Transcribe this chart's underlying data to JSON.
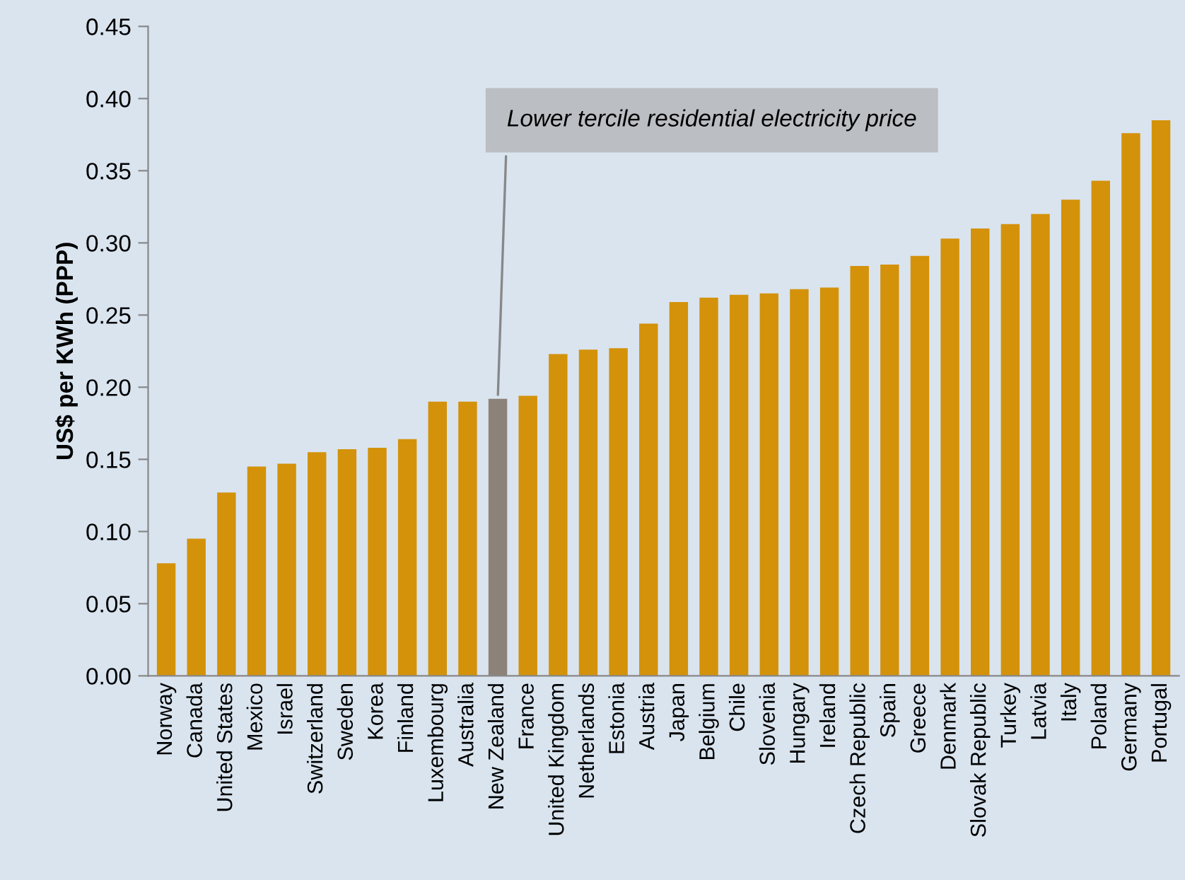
{
  "chart_data": {
    "type": "bar",
    "ylabel": "US$ per KWh (PPP)",
    "categories": [
      "Norway",
      "Canada",
      "United States",
      "Mexico",
      "Israel",
      "Switzerland",
      "Sweden",
      "Korea",
      "Finland",
      "Luxembourg",
      "Australia",
      "New Zealand",
      "France",
      "United Kingdom",
      "Netherlands",
      "Estonia",
      "Austria",
      "Japan",
      "Belgium",
      "Chile",
      "Slovenia",
      "Hungary",
      "Ireland",
      "Czech Republic",
      "Spain",
      "Greece",
      "Denmark",
      "Slovak Republic",
      "Turkey",
      "Latvia",
      "Italy",
      "Poland",
      "Germany",
      "Portugal"
    ],
    "values": [
      0.078,
      0.095,
      0.127,
      0.145,
      0.147,
      0.155,
      0.157,
      0.158,
      0.164,
      0.19,
      0.19,
      0.192,
      0.194,
      0.223,
      0.226,
      0.227,
      0.244,
      0.259,
      0.262,
      0.264,
      0.265,
      0.268,
      0.269,
      0.284,
      0.285,
      0.291,
      0.303,
      0.31,
      0.313,
      0.32,
      0.33,
      0.343,
      0.376,
      0.385
    ],
    "colors": [
      "#d4920a",
      "#d4920a",
      "#d4920a",
      "#d4920a",
      "#d4920a",
      "#d4920a",
      "#d4920a",
      "#d4920a",
      "#d4920a",
      "#d4920a",
      "#d4920a",
      "#8c8279",
      "#d4920a",
      "#d4920a",
      "#d4920a",
      "#d4920a",
      "#d4920a",
      "#d4920a",
      "#d4920a",
      "#d4920a",
      "#d4920a",
      "#d4920a",
      "#d4920a",
      "#d4920a",
      "#d4920a",
      "#d4920a",
      "#d4920a",
      "#d4920a",
      "#d4920a",
      "#d4920a",
      "#d4920a",
      "#d4920a",
      "#d4920a",
      "#d4920a"
    ],
    "ylim": [
      0,
      0.45
    ],
    "yticks": [
      {
        "value": 0,
        "label": "0.00"
      },
      {
        "value": 0.05,
        "label": "0.05"
      },
      {
        "value": 0.1,
        "label": "0.10"
      },
      {
        "value": 0.15,
        "label": "0.15"
      },
      {
        "value": 0.2,
        "label": "0.20"
      },
      {
        "value": 0.25,
        "label": "0.25"
      },
      {
        "value": 0.3,
        "label": "0.30"
      },
      {
        "value": 0.35,
        "label": "0.35"
      },
      {
        "value": 0.4,
        "label": "0.40"
      },
      {
        "value": 0.45,
        "label": "0.45"
      }
    ],
    "grid": false,
    "legend": false,
    "annotations": [
      {
        "text": "Lower tercile residential electricity price",
        "x": "New Zealand",
        "y": 0.192
      }
    ]
  }
}
